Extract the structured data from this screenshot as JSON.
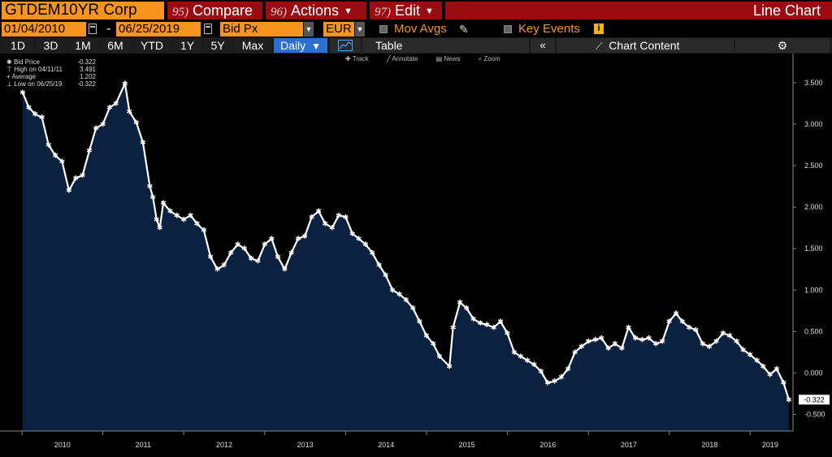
{
  "header": {
    "ticker": "GTDEM10YR Corp",
    "buttons": [
      {
        "num": "95)",
        "label": "Compare"
      },
      {
        "num": "96)",
        "label": "Actions"
      },
      {
        "num": "97)",
        "label": "Edit"
      }
    ],
    "view_title": "Line Chart"
  },
  "toolbar2": {
    "start_date": "01/04/2010",
    "separator": "-",
    "end_date": "06/25/2019",
    "field": "Bid Px",
    "currency": "EUR",
    "mov_avgs": "Mov Avgs",
    "key_events": "Key Events"
  },
  "toolbar3": {
    "periods": [
      "1D",
      "3D",
      "1M",
      "6M",
      "YTD",
      "1Y",
      "5Y",
      "Max"
    ],
    "frequency": "Daily",
    "table_label": "Table",
    "chart_content_label": "Chart Content"
  },
  "legend": [
    {
      "label": "Bid Price",
      "value": "-0.322"
    },
    {
      "label": "High on 04/11/11",
      "value": "3.491"
    },
    {
      "label": "Average",
      "value": "1.202"
    },
    {
      "label": "Low on 06/25/19",
      "value": "-0.322"
    }
  ],
  "chart_tools": [
    "Track",
    "Annotate",
    "News",
    "Zoom"
  ],
  "colors": {
    "accent_orange": "#f7941d",
    "header_red": "#9b0c12",
    "area_fill": "#0b2140",
    "line": "#ffffff",
    "active_blue": "#2a6fd1"
  },
  "chart_data": {
    "type": "area",
    "title": "",
    "series": [
      {
        "name": "Bid Price",
        "x": [
          "2010-01-04",
          "2010-02-01",
          "2010-03-01",
          "2010-04-01",
          "2010-05-01",
          "2010-06-01",
          "2010-07-01",
          "2010-08-01",
          "2010-09-01",
          "2010-10-01",
          "2010-11-01",
          "2010-12-01",
          "2011-01-01",
          "2011-02-01",
          "2011-03-01",
          "2011-04-11",
          "2011-05-01",
          "2011-06-01",
          "2011-07-01",
          "2011-08-01",
          "2011-08-15",
          "2011-09-01",
          "2011-09-15",
          "2011-10-01",
          "2011-11-01",
          "2011-12-01",
          "2012-01-01",
          "2012-02-01",
          "2012-03-01",
          "2012-04-01",
          "2012-05-01",
          "2012-06-01",
          "2012-07-01",
          "2012-08-01",
          "2012-09-01",
          "2012-10-01",
          "2012-11-01",
          "2012-12-01",
          "2013-01-01",
          "2013-02-01",
          "2013-03-01",
          "2013-04-01",
          "2013-05-01",
          "2013-06-01",
          "2013-07-01",
          "2013-08-01",
          "2013-09-01",
          "2013-10-01",
          "2013-11-01",
          "2013-12-01",
          "2014-01-01",
          "2014-02-01",
          "2014-03-01",
          "2014-04-01",
          "2014-05-01",
          "2014-06-01",
          "2014-07-01",
          "2014-08-01",
          "2014-09-01",
          "2014-10-01",
          "2014-11-01",
          "2014-12-01",
          "2015-01-01",
          "2015-02-01",
          "2015-03-01",
          "2015-04-15",
          "2015-05-01",
          "2015-06-01",
          "2015-07-01",
          "2015-08-01",
          "2015-09-01",
          "2015-10-01",
          "2015-11-01",
          "2015-12-01",
          "2016-01-01",
          "2016-02-01",
          "2016-03-01",
          "2016-04-01",
          "2016-05-01",
          "2016-06-01",
          "2016-07-01",
          "2016-08-01",
          "2016-09-01",
          "2016-10-01",
          "2016-11-01",
          "2016-12-01",
          "2017-01-01",
          "2017-02-01",
          "2017-03-01",
          "2017-04-01",
          "2017-05-01",
          "2017-06-01",
          "2017-07-01",
          "2017-08-01",
          "2017-09-01",
          "2017-10-01",
          "2017-11-01",
          "2017-12-01",
          "2018-01-01",
          "2018-02-01",
          "2018-03-01",
          "2018-04-01",
          "2018-05-01",
          "2018-06-01",
          "2018-07-01",
          "2018-08-01",
          "2018-09-01",
          "2018-10-01",
          "2018-11-01",
          "2018-12-01",
          "2019-01-01",
          "2019-02-01",
          "2019-03-01",
          "2019-04-01",
          "2019-05-01",
          "2019-06-01",
          "2019-06-25"
        ],
        "values": [
          3.38,
          3.2,
          3.12,
          3.08,
          2.75,
          2.62,
          2.55,
          2.2,
          2.35,
          2.38,
          2.68,
          2.95,
          3.0,
          3.2,
          3.25,
          3.49,
          3.15,
          3.02,
          2.78,
          2.25,
          2.12,
          1.85,
          1.75,
          2.05,
          1.95,
          1.9,
          1.85,
          1.9,
          1.8,
          1.72,
          1.4,
          1.25,
          1.3,
          1.45,
          1.55,
          1.5,
          1.38,
          1.35,
          1.55,
          1.62,
          1.4,
          1.25,
          1.45,
          1.62,
          1.65,
          1.88,
          1.95,
          1.8,
          1.75,
          1.9,
          1.88,
          1.68,
          1.62,
          1.55,
          1.45,
          1.3,
          1.18,
          1.0,
          0.95,
          0.88,
          0.78,
          0.62,
          0.45,
          0.35,
          0.2,
          0.08,
          0.55,
          0.85,
          0.78,
          0.65,
          0.6,
          0.58,
          0.55,
          0.62,
          0.48,
          0.25,
          0.2,
          0.15,
          0.1,
          0.02,
          -0.12,
          -0.1,
          -0.05,
          0.05,
          0.25,
          0.32,
          0.38,
          0.4,
          0.42,
          0.3,
          0.35,
          0.3,
          0.55,
          0.42,
          0.4,
          0.42,
          0.35,
          0.38,
          0.62,
          0.72,
          0.62,
          0.55,
          0.52,
          0.35,
          0.32,
          0.38,
          0.48,
          0.45,
          0.38,
          0.28,
          0.22,
          0.15,
          0.08,
          -0.02,
          0.05,
          -0.12,
          -0.322
        ]
      }
    ],
    "x_tick_labels": [
      "2010",
      "2011",
      "2012",
      "2013",
      "2014",
      "2015",
      "2016",
      "2017",
      "2018",
      "2019"
    ],
    "y_tick_labels": [
      "3.500",
      "3.000",
      "2.500",
      "2.000",
      "1.500",
      "1.000",
      "0.500",
      "0.000",
      "-0.500"
    ],
    "ylim": [
      -0.7,
      3.85
    ],
    "last_value_label": "-0.322",
    "grid": false,
    "legend_position": "top-left"
  }
}
